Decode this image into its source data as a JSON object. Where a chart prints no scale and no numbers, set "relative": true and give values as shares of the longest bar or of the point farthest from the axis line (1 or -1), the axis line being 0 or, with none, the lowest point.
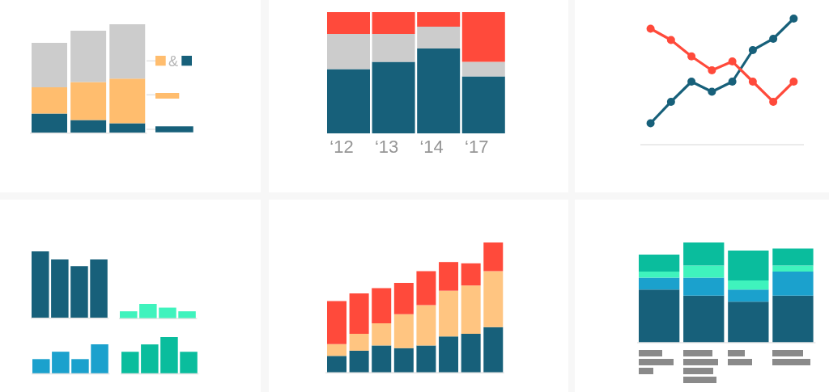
{
  "chart_data": [
    {
      "type": "bar",
      "stacked": true,
      "relative": true,
      "categories": [
        null,
        null,
        null
      ],
      "series": [
        {
          "color": "#17607a",
          "values": [
            0.18,
            0.12,
            0.09
          ]
        },
        {
          "color": "#ffbd6e",
          "values": [
            0.24,
            0.35,
            0.41
          ]
        },
        {
          "color": "#cccccc",
          "values": [
            0.41,
            0.47,
            0.5
          ]
        }
      ],
      "annotations": [
        "&"
      ]
    },
    {
      "type": "bar",
      "stacked": true,
      "relative": true,
      "categories": [
        "‘12",
        "‘13",
        "‘14",
        "‘17"
      ],
      "series": [
        {
          "color": "#17607a",
          "values": [
            0.53,
            0.59,
            0.7,
            0.47
          ]
        },
        {
          "color": "#cccccc",
          "values": [
            0.29,
            0.23,
            0.18,
            0.12
          ]
        },
        {
          "color": "#ff4a3b",
          "values": [
            0.18,
            0.18,
            0.12,
            0.41
          ]
        }
      ]
    },
    {
      "type": "line",
      "relative": true,
      "marker": "circle",
      "categories": [
        null,
        null,
        null,
        null,
        null,
        null,
        null,
        null
      ],
      "series": [
        {
          "color": "#17607a",
          "values": [
            0.17,
            0.34,
            0.5,
            0.42,
            0.5,
            0.75,
            0.84,
            1
          ]
        },
        {
          "color": "#ff4a3b",
          "values": [
            0.92,
            0.83,
            0.7,
            0.59,
            0.66,
            0.5,
            0.34,
            0.5
          ]
        }
      ]
    },
    {
      "type": "bar",
      "relative": true,
      "categories": [
        null,
        null,
        null,
        null
      ],
      "color": "#17607a",
      "values": [
        1,
        0.88,
        0.78,
        0.88
      ]
    },
    {
      "type": "bar",
      "relative": true,
      "categories": [
        null,
        null,
        null,
        null
      ],
      "color": "#3ff3bd",
      "values": [
        0.5,
        1,
        0.75,
        0.5
      ]
    },
    {
      "type": "bar",
      "relative": true,
      "categories": [
        null,
        null,
        null,
        null
      ],
      "color": "#1ba1cd",
      "values": [
        0.5,
        0.75,
        0.5,
        1
      ]
    },
    {
      "type": "bar",
      "relative": true,
      "categories": [
        null,
        null,
        null,
        null
      ],
      "color": "#0abd9d",
      "values": [
        0.6,
        0.8,
        1,
        0.6
      ]
    },
    {
      "type": "bar",
      "stacked": true,
      "relative": true,
      "categories": [
        null,
        null,
        null,
        null,
        null,
        null,
        null,
        null
      ],
      "series": [
        {
          "color": "#17607a",
          "values": [
            0.13,
            0.17,
            0.21,
            0.19,
            0.21,
            0.28,
            0.3,
            0.35
          ]
        },
        {
          "color": "#ffc581",
          "values": [
            0.09,
            0.13,
            0.17,
            0.26,
            0.31,
            0.35,
            0.37,
            0.43
          ]
        },
        {
          "color": "#ff4a3b",
          "values": [
            0.33,
            0.31,
            0.27,
            0.24,
            0.26,
            0.22,
            0.17,
            0.22
          ]
        }
      ]
    },
    {
      "type": "bar",
      "stacked": true,
      "relative": true,
      "categories": [
        null,
        null,
        null,
        null
      ],
      "series": [
        {
          "color": "#17607a",
          "values": [
            0.53,
            0.47,
            0.41,
            0.47
          ]
        },
        {
          "color": "#1ba1cd",
          "values": [
            0.12,
            0.18,
            0.12,
            0.24
          ]
        },
        {
          "color": "#3ff3bd",
          "values": [
            0.06,
            0.12,
            0.09,
            0.06
          ]
        },
        {
          "color": "#0abd9d",
          "values": [
            0.17,
            0.23,
            0.3,
            0.17
          ]
        }
      ]
    }
  ]
}
